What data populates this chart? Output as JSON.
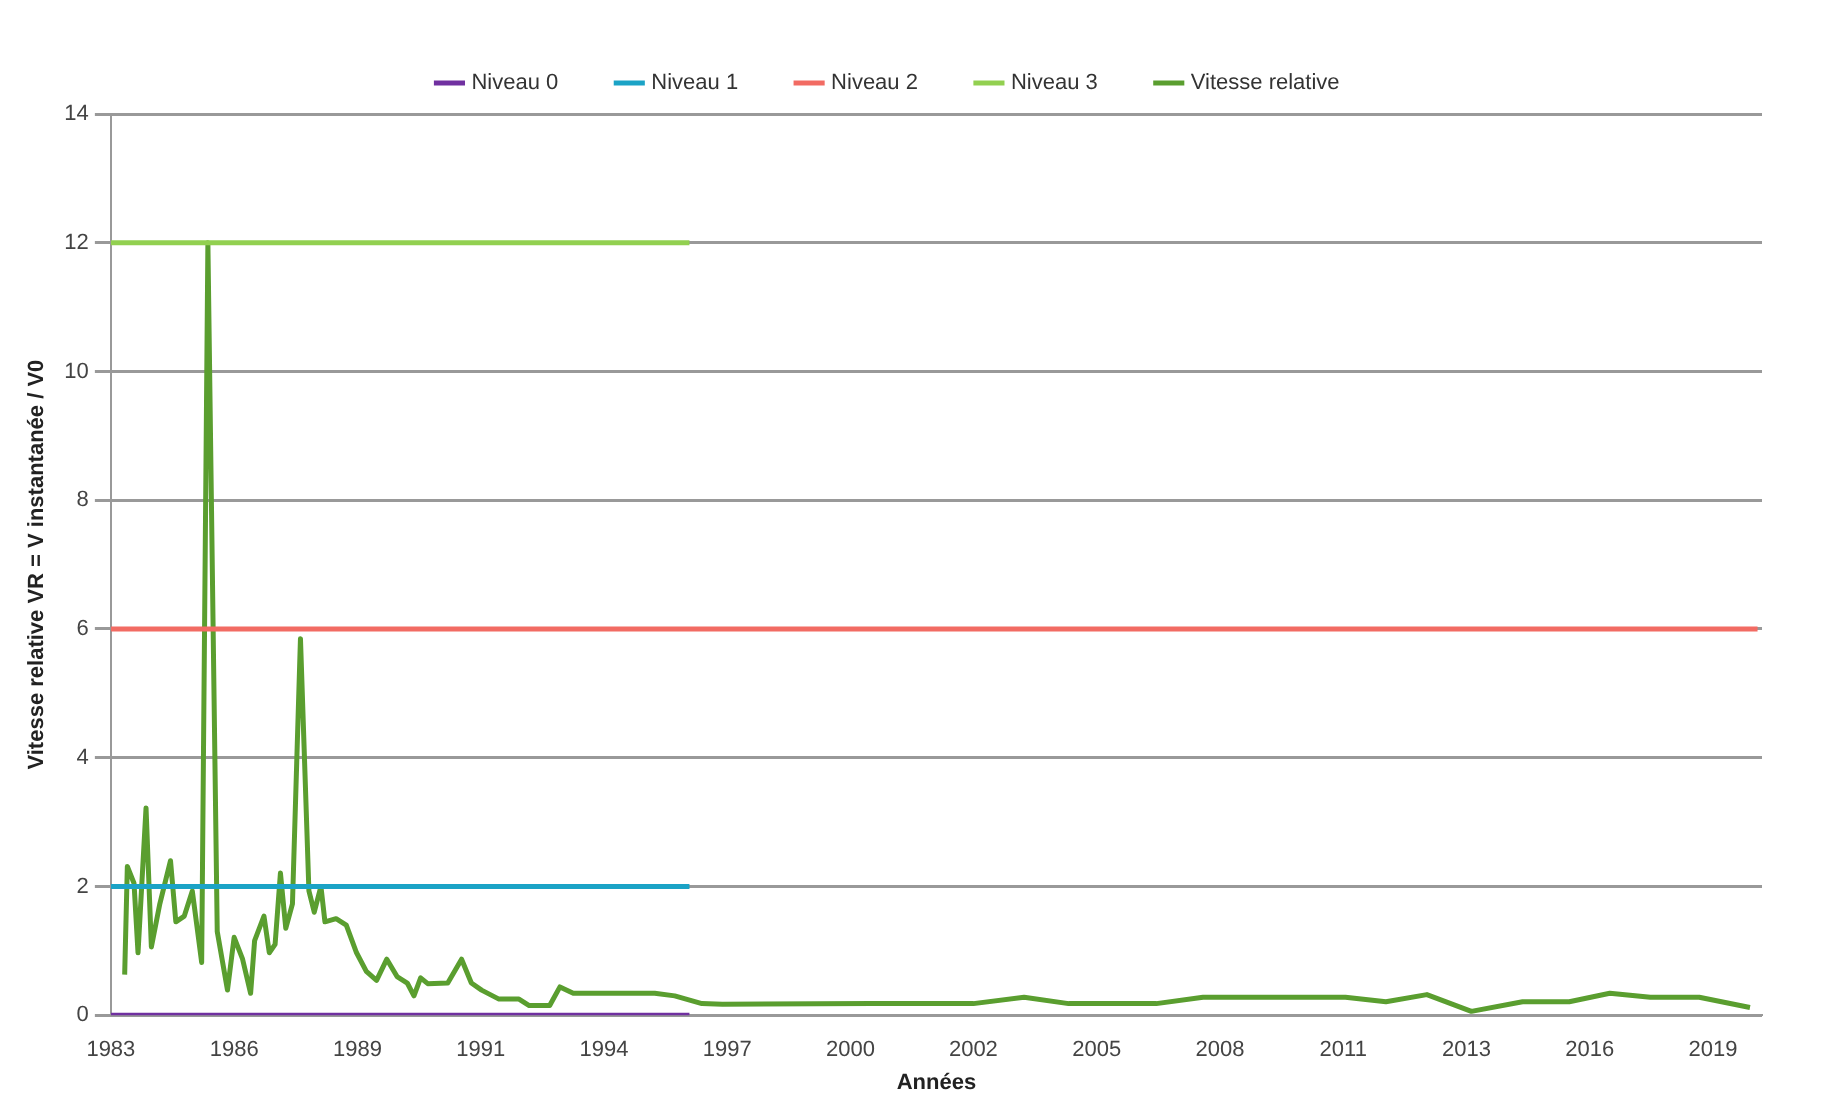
{
  "chart_data": {
    "type": "line",
    "xlabel": "Années",
    "ylabel": "Vitesse relative VR = V instantanée / V0",
    "xlim": [
      1983,
      2020.1
    ],
    "xticks": [
      1983,
      {
        "value": 1985.77,
        "label": "1986"
      },
      {
        "value": 1988.54,
        "label": "1989"
      },
      {
        "value": 1991.31,
        "label": "1991"
      },
      {
        "value": 1994.08,
        "label": "1994"
      },
      {
        "value": 1996.85,
        "label": "1997"
      },
      {
        "value": 1999.62,
        "label": "2000"
      },
      {
        "value": 2002.38,
        "label": "2002"
      },
      {
        "value": 2005.15,
        "label": "2005"
      },
      {
        "value": 2007.92,
        "label": "2008"
      },
      {
        "value": 2010.69,
        "label": "2011"
      },
      {
        "value": 2013.46,
        "label": "2013"
      },
      {
        "value": 2016.23,
        "label": "2016"
      },
      2019
    ],
    "ylim": [
      0,
      14
    ],
    "yticks": [
      0,
      2,
      4,
      6,
      8,
      10,
      12,
      14
    ],
    "grid": "y",
    "legend": "top",
    "marker": "none",
    "line_style": "solid",
    "series": [
      {
        "name": "Niveau 0",
        "color": "#7030a0",
        "x": [
          1983,
          1996
        ],
        "values": [
          0,
          0
        ]
      },
      {
        "name": "Niveau 1",
        "color": "#1ba3c6",
        "x": [
          1983,
          1996
        ],
        "values": [
          2,
          2
        ]
      },
      {
        "name": "Niveau 2",
        "color": "#f26b63",
        "x": [
          1983,
          2020
        ],
        "values": [
          6,
          6
        ]
      },
      {
        "name": "Niveau 3",
        "color": "#92d050",
        "x": [
          1983,
          1996
        ],
        "values": [
          12,
          12
        ]
      },
      {
        "name": "Vitesse relative",
        "color": "#5a9e2f",
        "x": [
          1983.31,
          1983.37,
          1983.52,
          1983.61,
          1983.79,
          1983.91,
          1984.1,
          1984.34,
          1984.46,
          1984.65,
          1984.83,
          1985.04,
          1985.18,
          1985.39,
          1985.62,
          1985.77,
          1985.96,
          1986.14,
          1986.23,
          1986.44,
          1986.56,
          1986.69,
          1986.81,
          1986.93,
          1987.08,
          1987.26,
          1987.45,
          1987.57,
          1987.72,
          1987.81,
          1988.06,
          1988.29,
          1988.52,
          1988.74,
          1988.97,
          1989.2,
          1989.43,
          1989.66,
          1989.81,
          1989.96,
          1990.12,
          1990.57,
          1990.88,
          1991.1,
          1991.33,
          1991.72,
          1992.17,
          1992.4,
          1992.86,
          1993.09,
          1993.39,
          1995.22,
          1995.67,
          1996.28,
          1996.74,
          2000.09,
          2002.38,
          2003.52,
          2004.52,
          2006.49,
          2007.54,
          2010.74,
          2011.65,
          2012.57,
          2013.57,
          2014.72,
          2015.77,
          2016.68,
          2017.59,
          2018.69,
          2019.83
        ],
        "values": [
          0.63,
          2.31,
          2.05,
          0.97,
          3.22,
          1.06,
          1.73,
          2.4,
          1.45,
          1.54,
          1.93,
          0.82,
          12,
          1.3,
          0.39,
          1.21,
          0.87,
          0.34,
          1.16,
          1.54,
          0.97,
          1.1,
          2.21,
          1.35,
          1.73,
          5.85,
          1.93,
          1.6,
          2.0,
          1.45,
          1.5,
          1.4,
          0.97,
          0.68,
          0.54,
          0.87,
          0.6,
          0.5,
          0.3,
          0.58,
          0.49,
          0.5,
          0.87,
          0.5,
          0.39,
          0.25,
          0.25,
          0.15,
          0.15,
          0.44,
          0.34,
          0.34,
          0.3,
          0.18,
          0.17,
          0.18,
          0.18,
          0.28,
          0.18,
          0.18,
          0.28,
          0.28,
          0.21,
          0.32,
          0.06,
          0.21,
          0.21,
          0.34,
          0.28,
          0.28,
          0.12
        ]
      }
    ]
  }
}
